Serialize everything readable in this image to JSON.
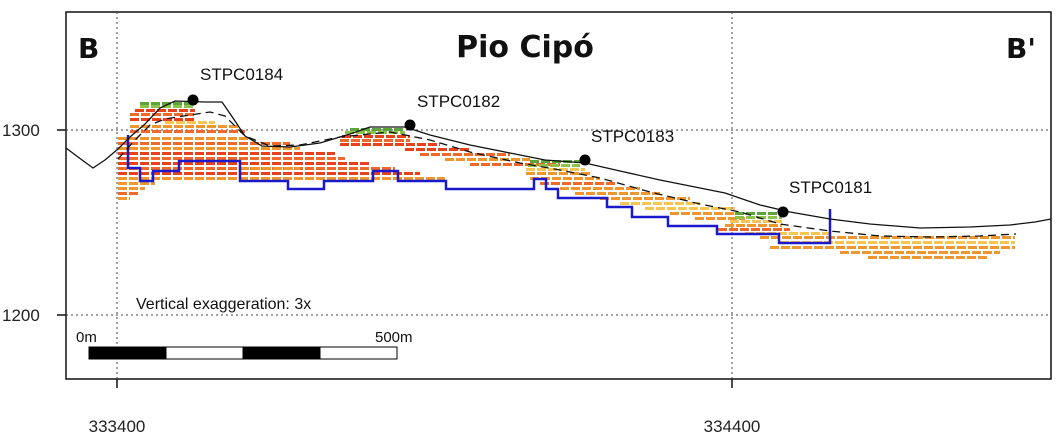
{
  "section": {
    "title": "Pio Cipó",
    "start_label": "B",
    "end_label": "B'",
    "note": "Vertical exaggeration: 3x"
  },
  "axes": {
    "x_ticks": [
      "333400",
      "334400"
    ],
    "y_ticks": [
      "1300",
      "1200"
    ]
  },
  "scale_bar": {
    "start_label": "0m",
    "end_label": "500m"
  },
  "drillholes": [
    {
      "id": "STPC0184"
    },
    {
      "id": "STPC0182"
    },
    {
      "id": "STPC0183"
    },
    {
      "id": "STPC0181"
    }
  ],
  "colors": {
    "topography": "#111111",
    "pit_outline": "#1a1acc",
    "grade_high": "#e8411c",
    "grade_mid_high": "#ef6a2a",
    "grade_mid": "#f0962e",
    "grade_low": "#f4b23c",
    "grade_lowest": "#f7c652",
    "green_cap": "#5aa43a",
    "green_light": "#8cc449"
  }
}
